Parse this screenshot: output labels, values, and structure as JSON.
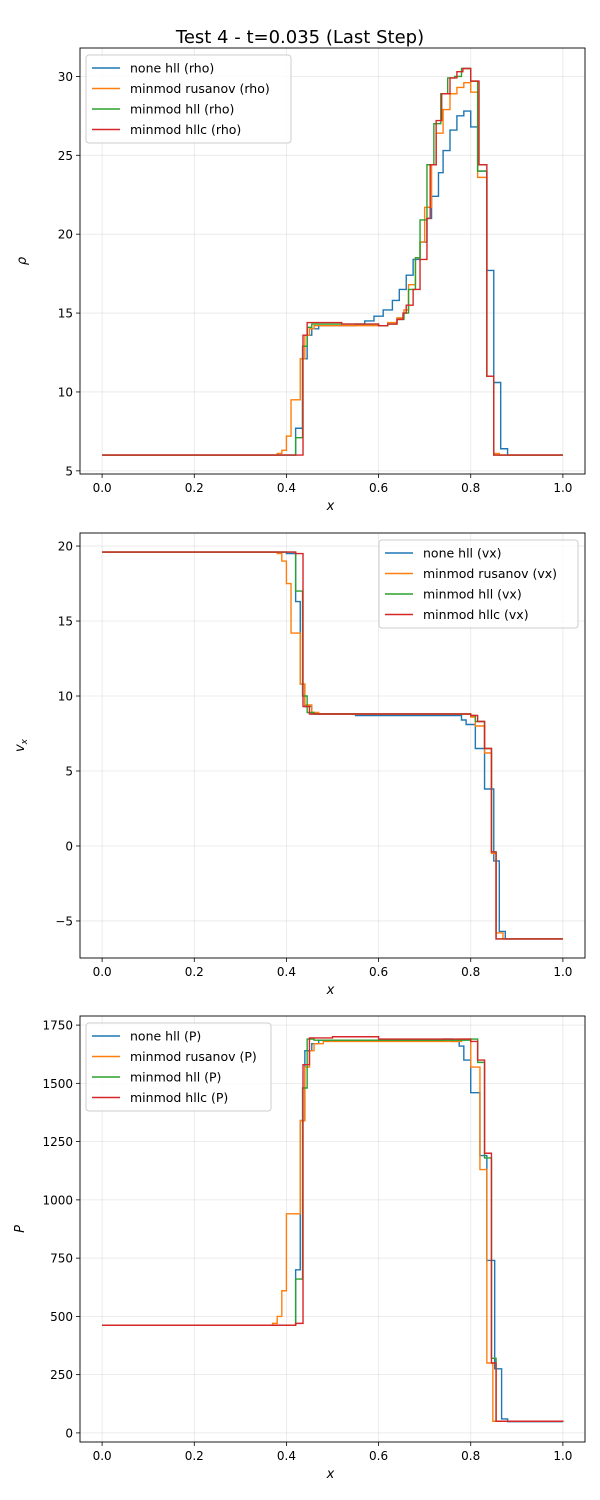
{
  "title": "Test 4 - t=0.035 (Last Step)",
  "colors": {
    "none hll": "#1f77b4",
    "minmod rusanov": "#ff7f0e",
    "minmod hll": "#2ca02c",
    "minmod hllc": "#d62728"
  },
  "chart_data": [
    {
      "type": "line",
      "xlabel": "x",
      "ylabel": "ρ",
      "xlim": [
        -0.048,
        1.048
      ],
      "ylim": [
        4.8,
        31.8
      ],
      "xticks": [
        0.0,
        0.2,
        0.4,
        0.6,
        0.8,
        1.0
      ],
      "xtick_labels": [
        "0.0",
        "0.2",
        "0.4",
        "0.6",
        "0.8",
        "1.0"
      ],
      "yticks": [
        5,
        10,
        15,
        20,
        25,
        30
      ],
      "ytick_labels": [
        "5",
        "10",
        "15",
        "20",
        "25",
        "30"
      ],
      "grid": true,
      "legend": "top-left",
      "series": [
        {
          "name": "none hll (rho)",
          "color": "#1f77b4",
          "points": [
            [
              0,
              6
            ],
            [
              0.42,
              7.7
            ],
            [
              0.435,
              12.1
            ],
            [
              0.445,
              13.6
            ],
            [
              0.455,
              14.0
            ],
            [
              0.47,
              14.2
            ],
            [
              0.55,
              14.3
            ],
            [
              0.57,
              14.5
            ],
            [
              0.59,
              14.8
            ],
            [
              0.61,
              15.2
            ],
            [
              0.63,
              15.8
            ],
            [
              0.645,
              16.5
            ],
            [
              0.66,
              17.4
            ],
            [
              0.675,
              18.4
            ],
            [
              0.69,
              19.5
            ],
            [
              0.705,
              21.0
            ],
            [
              0.715,
              22.4
            ],
            [
              0.73,
              23.9
            ],
            [
              0.74,
              25.3
            ],
            [
              0.755,
              26.6
            ],
            [
              0.77,
              27.5
            ],
            [
              0.785,
              27.8
            ],
            [
              0.8,
              26.8
            ],
            [
              0.815,
              24.0
            ],
            [
              0.835,
              17.7
            ],
            [
              0.85,
              10.6
            ],
            [
              0.865,
              6.4
            ],
            [
              0.88,
              6
            ],
            [
              1.0,
              6
            ]
          ]
        },
        {
          "name": "minmod rusanov (rho)",
          "color": "#ff7f0e",
          "points": [
            [
              0,
              6
            ],
            [
              0.38,
              6.1
            ],
            [
              0.39,
              6.3
            ],
            [
              0.4,
              7.2
            ],
            [
              0.41,
              9.5
            ],
            [
              0.43,
              12.1
            ],
            [
              0.44,
              13.6
            ],
            [
              0.45,
              14.0
            ],
            [
              0.46,
              14.2
            ],
            [
              0.6,
              14.2
            ],
            [
              0.62,
              14.4
            ],
            [
              0.64,
              14.7
            ],
            [
              0.655,
              15.2
            ],
            [
              0.665,
              16.8
            ],
            [
              0.68,
              18.5
            ],
            [
              0.69,
              19.5
            ],
            [
              0.7,
              21.7
            ],
            [
              0.715,
              24.4
            ],
            [
              0.725,
              26.4
            ],
            [
              0.74,
              27.9
            ],
            [
              0.755,
              28.9
            ],
            [
              0.77,
              29.3
            ],
            [
              0.785,
              29.6
            ],
            [
              0.8,
              29.0
            ],
            [
              0.815,
              23.6
            ],
            [
              0.835,
              11.0
            ],
            [
              0.85,
              6.1
            ],
            [
              0.862,
              6
            ],
            [
              1.0,
              6
            ]
          ]
        },
        {
          "name": "minmod hll (rho)",
          "color": "#2ca02c",
          "points": [
            [
              0,
              6
            ],
            [
              0.42,
              7.1
            ],
            [
              0.435,
              12.9
            ],
            [
              0.445,
              14.1
            ],
            [
              0.455,
              14.3
            ],
            [
              0.6,
              14.2
            ],
            [
              0.62,
              14.3
            ],
            [
              0.64,
              14.6
            ],
            [
              0.655,
              15.0
            ],
            [
              0.665,
              16.5
            ],
            [
              0.68,
              18.5
            ],
            [
              0.69,
              20.9
            ],
            [
              0.705,
              24.4
            ],
            [
              0.72,
              27.0
            ],
            [
              0.735,
              28.9
            ],
            [
              0.75,
              29.9
            ],
            [
              0.765,
              30.0
            ],
            [
              0.78,
              30.5
            ],
            [
              0.8,
              29.7
            ],
            [
              0.815,
              24.0
            ],
            [
              0.835,
              11.0
            ],
            [
              0.85,
              6
            ],
            [
              1.0,
              6
            ]
          ]
        },
        {
          "name": "minmod hllc (rho)",
          "color": "#d62728",
          "points": [
            [
              0,
              6
            ],
            [
              0.436,
              13.6
            ],
            [
              0.445,
              14.4
            ],
            [
              0.52,
              14.3
            ],
            [
              0.6,
              14.2
            ],
            [
              0.62,
              14.3
            ],
            [
              0.64,
              14.6
            ],
            [
              0.653,
              15.0
            ],
            [
              0.66,
              15.5
            ],
            [
              0.675,
              16.5
            ],
            [
              0.69,
              18.4
            ],
            [
              0.705,
              21.0
            ],
            [
              0.712,
              24.4
            ],
            [
              0.725,
              27.2
            ],
            [
              0.737,
              28.9
            ],
            [
              0.755,
              29.9
            ],
            [
              0.77,
              30.3
            ],
            [
              0.783,
              30.5
            ],
            [
              0.8,
              29.7
            ],
            [
              0.818,
              24.4
            ],
            [
              0.835,
              11.0
            ],
            [
              0.85,
              6
            ],
            [
              1.0,
              6
            ]
          ]
        }
      ]
    },
    {
      "type": "line",
      "xlabel": "x",
      "ylabel": "v_x",
      "xlim": [
        -0.048,
        1.048
      ],
      "ylim": [
        -7.47,
        20.87
      ],
      "xticks": [
        0.0,
        0.2,
        0.4,
        0.6,
        0.8,
        1.0
      ],
      "xtick_labels": [
        "0.0",
        "0.2",
        "0.4",
        "0.6",
        "0.8",
        "1.0"
      ],
      "yticks": [
        -5,
        0,
        5,
        10,
        15,
        20
      ],
      "ytick_labels": [
        "−5",
        "0",
        "5",
        "10",
        "15",
        "20"
      ],
      "grid": true,
      "legend": "top-right",
      "series": [
        {
          "name": "none hll (vx)",
          "color": "#1f77b4",
          "points": [
            [
              0,
              19.6
            ],
            [
              0.4,
              19.5
            ],
            [
              0.42,
              16.3
            ],
            [
              0.43,
              10.8
            ],
            [
              0.44,
              9.3
            ],
            [
              0.455,
              8.8
            ],
            [
              0.55,
              8.7
            ],
            [
              0.76,
              8.7
            ],
            [
              0.78,
              8.4
            ],
            [
              0.79,
              8.1
            ],
            [
              0.81,
              6.5
            ],
            [
              0.83,
              3.8
            ],
            [
              0.85,
              -1.0
            ],
            [
              0.862,
              -5.7
            ],
            [
              0.875,
              -6.2
            ],
            [
              1.0,
              -6.2
            ]
          ]
        },
        {
          "name": "minmod rusanov (vx)",
          "color": "#ff7f0e",
          "points": [
            [
              0,
              19.6
            ],
            [
              0.38,
              19.5
            ],
            [
              0.39,
              19.0
            ],
            [
              0.4,
              17.5
            ],
            [
              0.41,
              14.2
            ],
            [
              0.43,
              10.8
            ],
            [
              0.44,
              9.4
            ],
            [
              0.455,
              8.9
            ],
            [
              0.47,
              8.8
            ],
            [
              0.8,
              8.6
            ],
            [
              0.81,
              8.0
            ],
            [
              0.83,
              6.2
            ],
            [
              0.845,
              -0.5
            ],
            [
              0.855,
              -5.8
            ],
            [
              0.87,
              -6.2
            ],
            [
              1.0,
              -6.2
            ]
          ]
        },
        {
          "name": "minmod hll (vx)",
          "color": "#2ca02c",
          "points": [
            [
              0,
              19.6
            ],
            [
              0.42,
              17.0
            ],
            [
              0.435,
              10.0
            ],
            [
              0.445,
              8.9
            ],
            [
              0.46,
              8.8
            ],
            [
              0.8,
              8.7
            ],
            [
              0.81,
              8.3
            ],
            [
              0.83,
              6.5
            ],
            [
              0.845,
              -0.4
            ],
            [
              0.855,
              -6.2
            ],
            [
              1.0,
              -6.2
            ]
          ]
        },
        {
          "name": "minmod hllc (vx)",
          "color": "#d62728",
          "points": [
            [
              0,
              19.6
            ],
            [
              0.42,
              19.5
            ],
            [
              0.436,
              9.3
            ],
            [
              0.45,
              8.8
            ],
            [
              0.8,
              8.7
            ],
            [
              0.815,
              8.3
            ],
            [
              0.83,
              6.5
            ],
            [
              0.845,
              -0.4
            ],
            [
              0.855,
              -6.2
            ],
            [
              1.0,
              -6.2
            ]
          ]
        }
      ]
    },
    {
      "type": "line",
      "xlabel": "x",
      "ylabel": "P",
      "xlim": [
        -0.048,
        1.048
      ],
      "ylim": [
        -39,
        1789
      ],
      "xticks": [
        0.0,
        0.2,
        0.4,
        0.6,
        0.8,
        1.0
      ],
      "xtick_labels": [
        "0.0",
        "0.2",
        "0.4",
        "0.6",
        "0.8",
        "1.0"
      ],
      "yticks": [
        0,
        250,
        500,
        750,
        1000,
        1250,
        1500,
        1750
      ],
      "ytick_labels": [
        "0",
        "250",
        "500",
        "750",
        "1000",
        "1250",
        "1500",
        "1750"
      ],
      "grid": true,
      "legend": "top-left",
      "series": [
        {
          "name": "none hll (P)",
          "color": "#1f77b4",
          "points": [
            [
              0,
              462
            ],
            [
              0.42,
              700
            ],
            [
              0.43,
              1340
            ],
            [
              0.44,
              1640
            ],
            [
              0.455,
              1670
            ],
            [
              0.47,
              1685
            ],
            [
              0.74,
              1690
            ],
            [
              0.76,
              1680
            ],
            [
              0.775,
              1660
            ],
            [
              0.785,
              1600
            ],
            [
              0.8,
              1460
            ],
            [
              0.82,
              1190
            ],
            [
              0.835,
              740
            ],
            [
              0.852,
              275
            ],
            [
              0.867,
              60
            ],
            [
              0.88,
              48
            ],
            [
              1.0,
              48
            ]
          ]
        },
        {
          "name": "minmod rusanov (P)",
          "color": "#ff7f0e",
          "points": [
            [
              0,
              462
            ],
            [
              0.37,
              470
            ],
            [
              0.38,
              500
            ],
            [
              0.39,
              610
            ],
            [
              0.4,
              940
            ],
            [
              0.43,
              1340
            ],
            [
              0.44,
              1570
            ],
            [
              0.45,
              1640
            ],
            [
              0.46,
              1670
            ],
            [
              0.48,
              1680
            ],
            [
              0.78,
              1690
            ],
            [
              0.8,
              1570
            ],
            [
              0.82,
              1130
            ],
            [
              0.835,
              300
            ],
            [
              0.848,
              50
            ],
            [
              1.0,
              48
            ]
          ]
        },
        {
          "name": "minmod hll (P)",
          "color": "#2ca02c",
          "points": [
            [
              0,
              462
            ],
            [
              0.42,
              660
            ],
            [
              0.435,
              1480
            ],
            [
              0.445,
              1690
            ],
            [
              0.46,
              1685
            ],
            [
              0.8,
              1690
            ],
            [
              0.815,
              1590
            ],
            [
              0.83,
              1180
            ],
            [
              0.845,
              320
            ],
            [
              0.855,
              50
            ],
            [
              1.0,
              48
            ]
          ]
        },
        {
          "name": "minmod hllc (P)",
          "color": "#d62728",
          "points": [
            [
              0,
              462
            ],
            [
              0.42,
              470
            ],
            [
              0.436,
              1580
            ],
            [
              0.45,
              1695
            ],
            [
              0.5,
              1700
            ],
            [
              0.6,
              1690
            ],
            [
              0.78,
              1690
            ],
            [
              0.8,
              1680
            ],
            [
              0.815,
              1600
            ],
            [
              0.83,
              1200
            ],
            [
              0.845,
              300
            ],
            [
              0.855,
              50
            ],
            [
              1.0,
              48
            ]
          ]
        }
      ]
    }
  ]
}
